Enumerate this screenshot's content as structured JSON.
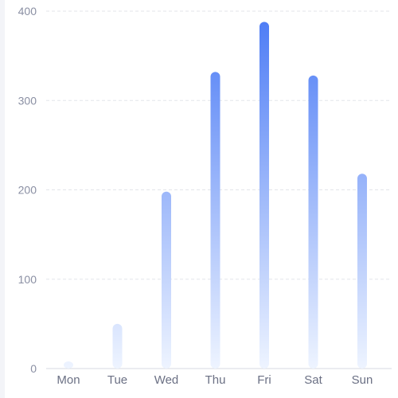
{
  "chart_data": {
    "type": "bar",
    "categories": [
      "Mon",
      "Tue",
      "Wed",
      "Thu",
      "Fri",
      "Sat",
      "Sun"
    ],
    "series": [
      {
        "values": [
          8,
          50,
          198,
          332,
          388,
          328,
          218
        ]
      }
    ],
    "y_ticks": [
      "0",
      "100",
      "200",
      "300",
      "400"
    ],
    "ylim": [
      0,
      400
    ],
    "grid": true,
    "colors": {
      "bar_top": "#4a7af5",
      "bar_bottom": "#eef4ff",
      "grid": "#e3e5ea",
      "axis": "#d7dae2"
    }
  }
}
